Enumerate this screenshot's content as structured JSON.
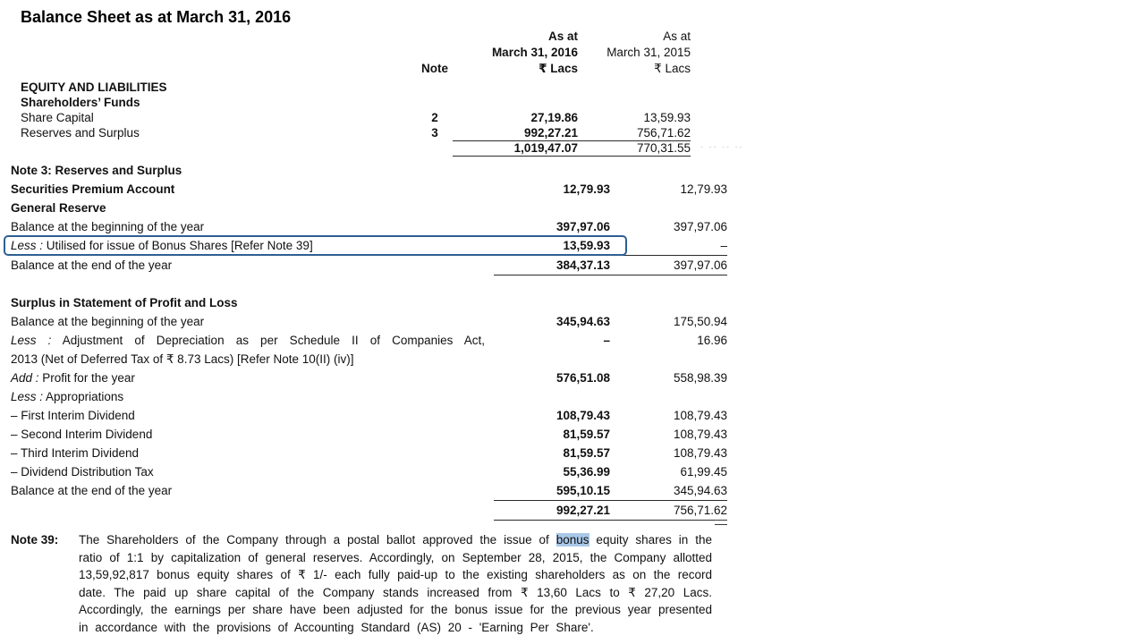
{
  "document": {
    "title": "Balance Sheet as at March 31, 2016",
    "columns": {
      "note_header": "Note",
      "y2016": {
        "as_at": "As at",
        "date": "March 31, 2016",
        "unit": "₹ Lacs"
      },
      "y2015": {
        "as_at": "As at",
        "date": "March 31, 2015",
        "unit": "₹ Lacs"
      }
    },
    "balance_sheet_rows": [
      {
        "label": "EQUITY AND LIABILITIES",
        "bold": true
      },
      {
        "label": "Shareholders’ Funds",
        "bold": true
      },
      {
        "label": "Share Capital",
        "note": "2",
        "v2016": "27,19.86",
        "v2015": "13,59.93"
      },
      {
        "label": "Reserves and Surplus",
        "note": "3",
        "v2016": "992,27.21",
        "v2015": "756,71.62",
        "underline": true
      },
      {
        "label": "",
        "v2016": "1,019,47.07",
        "v2015": "770,31.55",
        "underline": true
      }
    ],
    "note3": {
      "heading": "Note 3: Reserves and Surplus",
      "rows": [
        {
          "label": "Securities Premium Account",
          "bold": true,
          "v2016": "12,79.93",
          "v2015": "12,79.93"
        },
        {
          "label": "General Reserve",
          "bold": true
        },
        {
          "label": "Balance at the beginning of the year",
          "v2016": "397,97.06",
          "v2015": "397,97.06"
        },
        {
          "prefix": "Less :",
          "label": "Utilised for issue of Bonus Shares [Refer Note 39]",
          "v2016": "13,59.93",
          "v2015": "–",
          "underline": true,
          "boxed": true
        },
        {
          "label": "Balance at the end of the year",
          "v2016": "384,37.13",
          "v2015": "397,97.06",
          "underline": true
        },
        {
          "label": "Surplus in Statement of Profit and Loss",
          "bold": true,
          "gap_before": true
        },
        {
          "label": "Balance at the beginning of the year",
          "v2016": "345,94.63",
          "v2015": "175,50.94"
        },
        {
          "prefix": "Less :",
          "label": "Adjustment of Depreciation as per Schedule II of Companies Act,",
          "v2016": "–",
          "v2015": "16.96",
          "justify": true
        },
        {
          "label": "2013 (Net of Deferred Tax of ₹ 8.73 Lacs) [Refer Note 10(II) (iv)]"
        },
        {
          "prefix": "Add :",
          "label": "Profit for the year",
          "v2016": "576,51.08",
          "v2015": "558,98.39"
        },
        {
          "prefix": "Less :",
          "label": "Appropriations"
        },
        {
          "label": "– First Interim Dividend",
          "v2016": "108,79.43",
          "v2015": "108,79.43"
        },
        {
          "label": "– Second Interim Dividend",
          "v2016": "81,59.57",
          "v2015": "108,79.43"
        },
        {
          "label": "– Third Interim Dividend",
          "v2016": "81,59.57",
          "v2015": "108,79.43"
        },
        {
          "label": "– Dividend Distribution Tax",
          "v2016": "55,36.99",
          "v2015": "61,99.45"
        },
        {
          "label": "Balance at the end of the year",
          "v2016": "595,10.15",
          "v2015": "345,94.63",
          "underline": true
        },
        {
          "label": "",
          "v2016": "992,27.21",
          "v2015": "756,71.62",
          "underline": true,
          "double_tick": true
        }
      ]
    },
    "note39": {
      "label": "Note 39:",
      "text_before": "The Shareholders of the Company through a postal ballot approved the issue of ",
      "highlighted_word": "bonus",
      "text_after": " equity shares in the ratio of 1:1 by capitalization of general reserves. Accordingly, on September 28, 2015, the Company allotted 13,59,92,817 bonus equity shares of ₹ 1/- each fully paid-up to the existing shareholders as on the record date. The paid up share capital of the Company stands increased from ₹ 13,60 Lacs to ₹ 27,20 Lacs. Accordingly, the earnings per share have been adjusted for the bonus issue for the previous year presented in accordance with the provisions of Accounting Standard (AS) 20 - 'Earning Per Share'."
    },
    "annotations": {
      "selection_box_color": "#2e5f94",
      "text_highlight_color": "#a9c8e8",
      "scan_artifact_dashes": "- -- -- --"
    }
  }
}
